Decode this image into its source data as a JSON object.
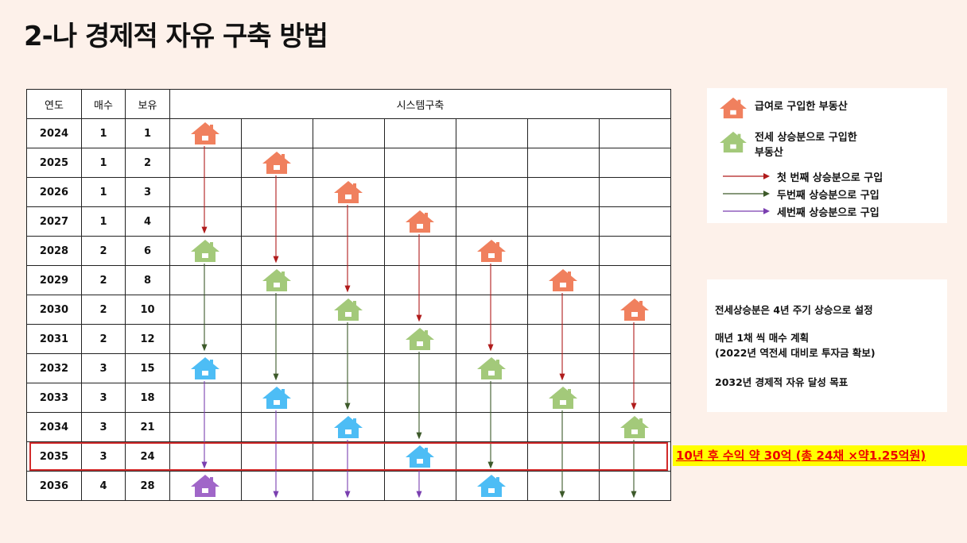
{
  "title": "2-나  경제적 자유 구축 방법",
  "table": {
    "headers": {
      "year": "연도",
      "buy": "매수",
      "own": "보유",
      "system": "시스템구축"
    },
    "rows": [
      {
        "year": "2024",
        "buy": "1",
        "own": "1"
      },
      {
        "year": "2025",
        "buy": "1",
        "own": "2"
      },
      {
        "year": "2026",
        "buy": "1",
        "own": "3"
      },
      {
        "year": "2027",
        "buy": "1",
        "own": "4"
      },
      {
        "year": "2028",
        "buy": "2",
        "own": "6"
      },
      {
        "year": "2029",
        "buy": "2",
        "own": "8"
      },
      {
        "year": "2030",
        "buy": "2",
        "own": "10"
      },
      {
        "year": "2031",
        "buy": "2",
        "own": "12"
      },
      {
        "year": "2032",
        "buy": "3",
        "own": "15"
      },
      {
        "year": "2033",
        "buy": "3",
        "own": "18"
      },
      {
        "year": "2034",
        "buy": "3",
        "own": "21"
      },
      {
        "year": "2035",
        "buy": "3",
        "own": "24"
      },
      {
        "year": "2036",
        "buy": "4",
        "own": "28"
      }
    ]
  },
  "houses": [
    {
      "col": 0,
      "row": 0,
      "type": "salary"
    },
    {
      "col": 1,
      "row": 1,
      "type": "salary"
    },
    {
      "col": 2,
      "row": 2,
      "type": "salary"
    },
    {
      "col": 3,
      "row": 3,
      "type": "salary"
    },
    {
      "col": 4,
      "row": 4,
      "type": "salary"
    },
    {
      "col": 5,
      "row": 5,
      "type": "salary"
    },
    {
      "col": 6,
      "row": 6,
      "type": "salary"
    },
    {
      "col": 0,
      "row": 4,
      "type": "first"
    },
    {
      "col": 1,
      "row": 5,
      "type": "first"
    },
    {
      "col": 2,
      "row": 6,
      "type": "first"
    },
    {
      "col": 3,
      "row": 7,
      "type": "first"
    },
    {
      "col": 4,
      "row": 8,
      "type": "first"
    },
    {
      "col": 5,
      "row": 9,
      "type": "first"
    },
    {
      "col": 6,
      "row": 10,
      "type": "first"
    },
    {
      "col": 0,
      "row": 8,
      "type": "second"
    },
    {
      "col": 1,
      "row": 9,
      "type": "second"
    },
    {
      "col": 2,
      "row": 10,
      "type": "second"
    },
    {
      "col": 3,
      "row": 11,
      "type": "second"
    },
    {
      "col": 4,
      "row": 12,
      "type": "second"
    },
    {
      "col": 0,
      "row": 12,
      "type": "third"
    }
  ],
  "arrows": [
    {
      "col": 0,
      "from": 0,
      "to": 3,
      "type": "first"
    },
    {
      "col": 1,
      "from": 1,
      "to": 4,
      "type": "first"
    },
    {
      "col": 2,
      "from": 2,
      "to": 5,
      "type": "first"
    },
    {
      "col": 3,
      "from": 3,
      "to": 6,
      "type": "first"
    },
    {
      "col": 4,
      "from": 4,
      "to": 7,
      "type": "first"
    },
    {
      "col": 5,
      "from": 5,
      "to": 8,
      "type": "first"
    },
    {
      "col": 6,
      "from": 6,
      "to": 9,
      "type": "first"
    },
    {
      "col": 0,
      "from": 4,
      "to": 7,
      "type": "second"
    },
    {
      "col": 1,
      "from": 5,
      "to": 8,
      "type": "second"
    },
    {
      "col": 2,
      "from": 6,
      "to": 9,
      "type": "second"
    },
    {
      "col": 3,
      "from": 7,
      "to": 10,
      "type": "second"
    },
    {
      "col": 4,
      "from": 8,
      "to": 11,
      "type": "second"
    },
    {
      "col": 5,
      "from": 9,
      "to": 12,
      "type": "second"
    },
    {
      "col": 6,
      "from": 10,
      "to": 12,
      "type": "second"
    },
    {
      "col": 0,
      "from": 8,
      "to": 11,
      "type": "third"
    },
    {
      "col": 1,
      "from": 9,
      "to": 12,
      "type": "third"
    },
    {
      "col": 2,
      "from": 10,
      "to": 12,
      "type": "third"
    },
    {
      "col": 3,
      "from": 11,
      "to": 12,
      "type": "third"
    }
  ],
  "colors": {
    "salary": "#f0805e",
    "first": "#a3c97a",
    "second": "#4dbdf5",
    "third": "#a066c8",
    "arrow_first": "#b01c1c",
    "arrow_second": "#3d5a2a",
    "arrow_third": "#7a3fb0"
  },
  "legend": {
    "salary_label": "급여로 구입한 부동산",
    "jeonse_label_line1": "전세 상승분으로 구입한",
    "jeonse_label_line2": "부동산",
    "arrow_first": "첫 번째 상승분으로 구입",
    "arrow_second": "두번째 상승분으로 구입",
    "arrow_third": "세번째 상승분으로 구입"
  },
  "notes": {
    "line1": "전세상승분은 4년 주기 상승으로 설정",
    "line2": "매년 1채 씩 매수 계획",
    "line3": "(2022년 역전세 대비로 투자금 확보)",
    "line4": "2032년 경제적 자유 달성 목표"
  },
  "profit_note": "10년  후 수익 약 30억 (총 24채 ×약1.25억원)"
}
